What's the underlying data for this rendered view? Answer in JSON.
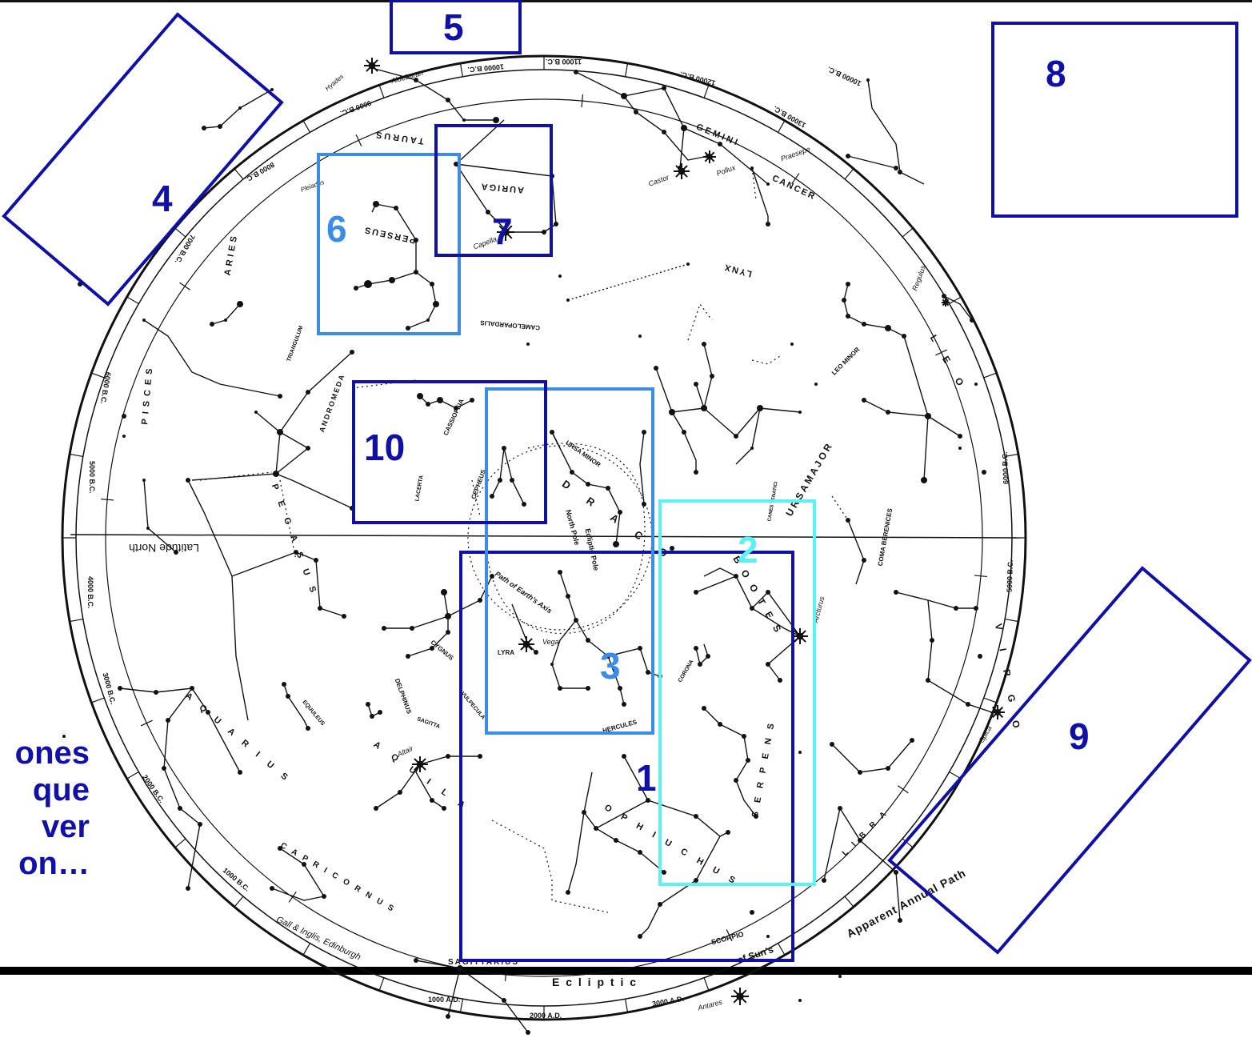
{
  "colors": {
    "dark_blue": "#1010a8",
    "mid_blue": "#3a8ee8",
    "cyan": "#5ff0f4",
    "ink": "#111111",
    "caption": "#1111aa"
  },
  "boxes": [
    {
      "id": "1",
      "label": "1",
      "color": "#1010a8"
    },
    {
      "id": "2",
      "label": "2",
      "color": "#5ff0f4"
    },
    {
      "id": "3",
      "label": "3",
      "color": "#3a8ee8"
    },
    {
      "id": "4",
      "label": "4",
      "color": "#1010a8"
    },
    {
      "id": "5",
      "label": "5",
      "color": "#1010a8"
    },
    {
      "id": "6",
      "label": "6",
      "color": "#3a8ee8"
    },
    {
      "id": "7",
      "label": "7",
      "color": "#1010a8"
    },
    {
      "id": "8",
      "label": "8",
      "color": "#1010a8"
    },
    {
      "id": "9",
      "label": "9",
      "color": "#1010a8"
    },
    {
      "id": "10",
      "label": "10",
      "color": "#1010a8"
    }
  ],
  "caption": {
    "line1": "ones",
    "line2": "que",
    "line3": "ver",
    "line4": "on…"
  },
  "constellations": {
    "taurus": "TAURUS",
    "auriga": "AURIGA",
    "perseus": "PERSEUS",
    "gemini": "G E M I N I",
    "cancer": "CANCER",
    "lynx": "LYNX",
    "camelopardalis": "CAMELOPARDALIS",
    "aries": "ARIES",
    "triangulum": "TRIANGULUM",
    "pisces": "PISCES",
    "andromeda": "ANDROMEDA",
    "cassiopeia": "CASSIOPEIA",
    "cepheus": "CEPHEUS",
    "ursa_minor": "URSA MINOR",
    "ursa_major": "U R S A   M A J O R",
    "leo_minor": "LEO MINOR",
    "leo": "L E O",
    "canes_venatici": "CANES VENATICI",
    "coma_berenices": "COMA BERENICES",
    "bootes": "B O O T E S",
    "virgo": "V I R G O",
    "draco": "D R A C O",
    "pegasus": "P E G A S U S",
    "lacerta": "LACERTA",
    "cygnus": "CYGNUS",
    "lyra": "LYRA",
    "hercules": "HERCULES",
    "corona": "CORONA",
    "delphinus": "DELPHINUS",
    "sagitta": "SAGITTA",
    "vulpecula": "VULPECULA",
    "equuleus": "EQUULEUS",
    "aquila": "A Q U I L A",
    "aquarius": "A Q U A R I U S",
    "ophiuchus": "O P H I U C H U S",
    "serpens": "S E R P E N S",
    "capricornus": "C A P R I C O R N U S",
    "sagittarius": "SAGITTARIUS",
    "scorpio": "SCORPIO",
    "libra": "L I B R A"
  },
  "labels": {
    "north_pole": "North Pole",
    "ecliptic_pole": "Ecliptic Pole",
    "path_of_earths_axis": "Path of Earth's Axis",
    "latitude_north": "Latitude North",
    "ecliptic": "E c l i p t i c",
    "apparent_annual_path": "Apparent Annual Path",
    "suns": "of Sun's",
    "publisher": "Gall & Inglis, Edinburgh"
  },
  "stars": {
    "aldebaran": "Aldebaran",
    "capella": "Capella",
    "castor": "Castor",
    "pollux": "Pollux",
    "praesepe": "Praesepe",
    "regulus": "Regulus",
    "arcturus": "Arcturus",
    "vega": "Vega",
    "altair": "Altair",
    "spica": "Spica",
    "antares": "Antares",
    "hyades": "Hyades",
    "pleiades": "Pleiades"
  },
  "epochs": {
    "e11000": "11000 B.C.",
    "e10000": "10000 B.C.",
    "e9000": "9000 B.C.",
    "e12000": "12000 B.C.",
    "e13000": "13000 B.C.",
    "e8000": "8000 B.C.",
    "e7000": "7000 B.C.",
    "e6000": "6000 B.C.",
    "e5000": "5000 B.C.",
    "e4000": "4000 B.C.",
    "e3000": "3000 B.C.",
    "e2000": "2000 B.C.",
    "e1000": "1000 B.C.",
    "e1000ad": "1000 A.D.",
    "e2000ad": "2000 A.D.",
    "e3000ad": "3000 A.D.",
    "e5000r": "5000 B.C.",
    "e6000r": "6000 B.C.",
    "e10000r": "10000 B.C."
  }
}
